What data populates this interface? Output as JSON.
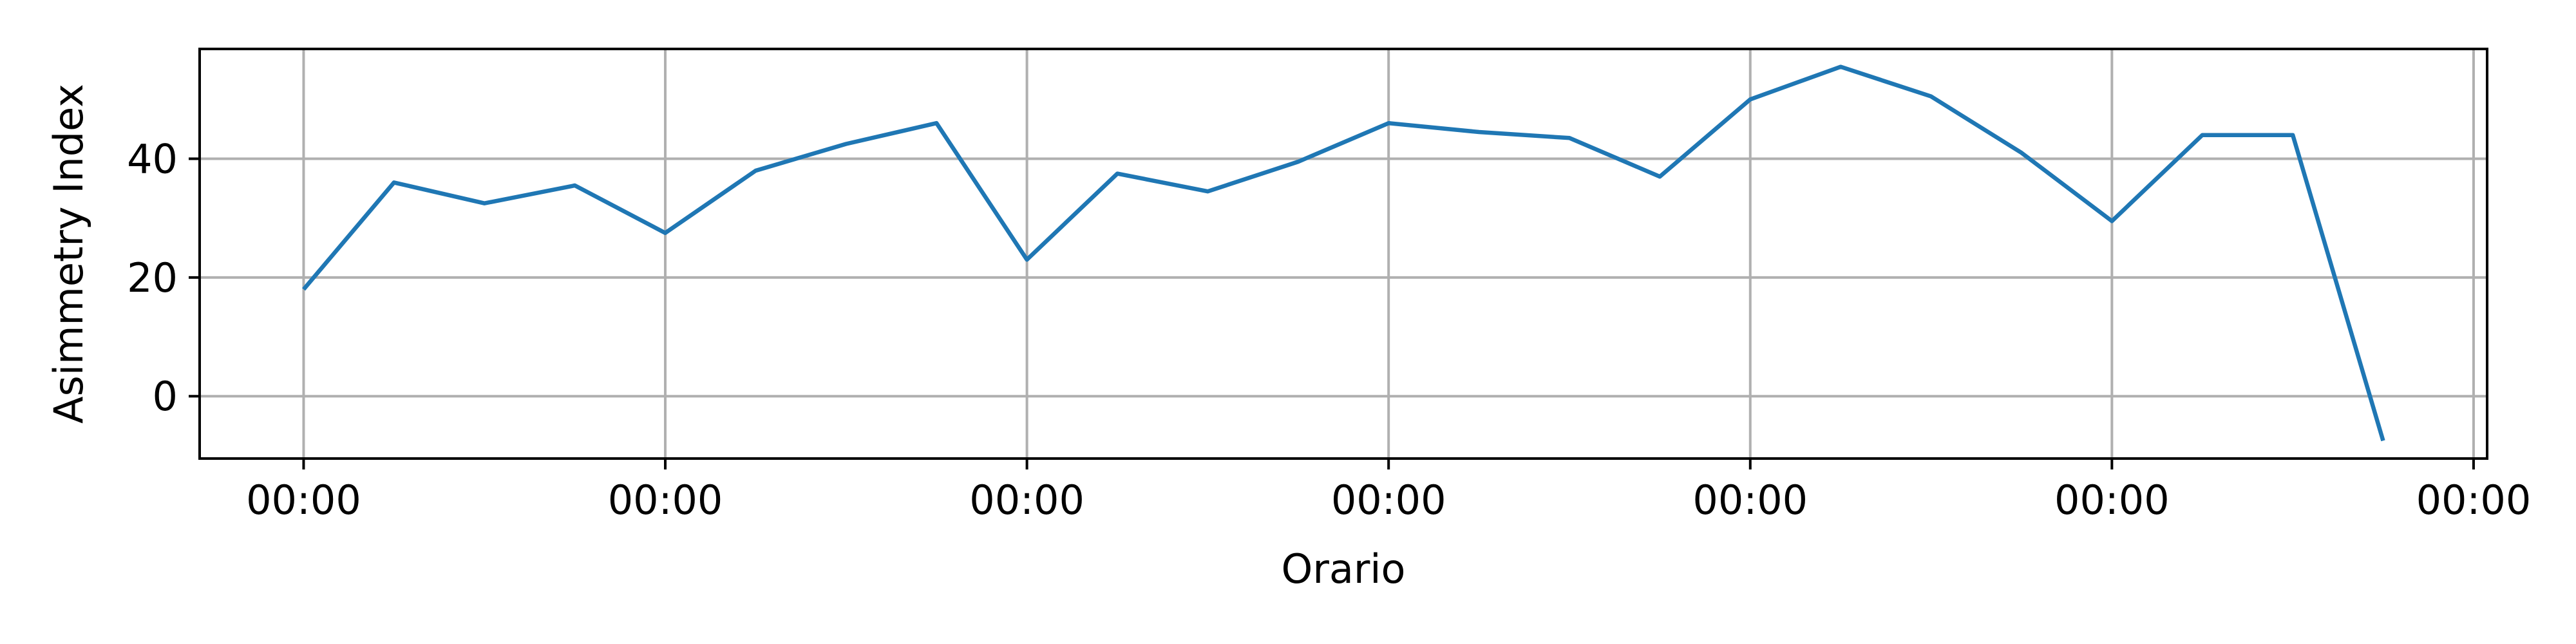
{
  "chart_data": {
    "type": "line",
    "title": "",
    "xlabel": "Orario",
    "ylabel": "Asimmetry Index",
    "x_tick_labels": [
      "00:00",
      "00:00",
      "00:00",
      "00:00",
      "00:00",
      "00:00",
      "00:00"
    ],
    "x_ticks": [
      0,
      4,
      8,
      12,
      16,
      20,
      24
    ],
    "xlim": [
      -1.15,
      24.15
    ],
    "y_ticks": [
      0,
      20,
      40
    ],
    "ylim": [
      -10.5,
      58.5
    ],
    "grid": true,
    "legend": "none",
    "series": [
      {
        "color": "#1f77b4",
        "x": [
          0,
          1,
          2,
          3,
          4,
          5,
          6,
          7,
          8,
          9,
          10,
          11,
          12,
          13,
          14,
          15,
          16,
          17,
          18,
          19,
          20,
          21,
          22,
          23
        ],
        "values": [
          18,
          36,
          32.5,
          35.5,
          27.5,
          38,
          42.5,
          46,
          23,
          37.5,
          34.5,
          39.5,
          46,
          44.5,
          43.5,
          37,
          50,
          55.5,
          50.5,
          41,
          29.5,
          44,
          44,
          -7.5
        ]
      }
    ]
  }
}
